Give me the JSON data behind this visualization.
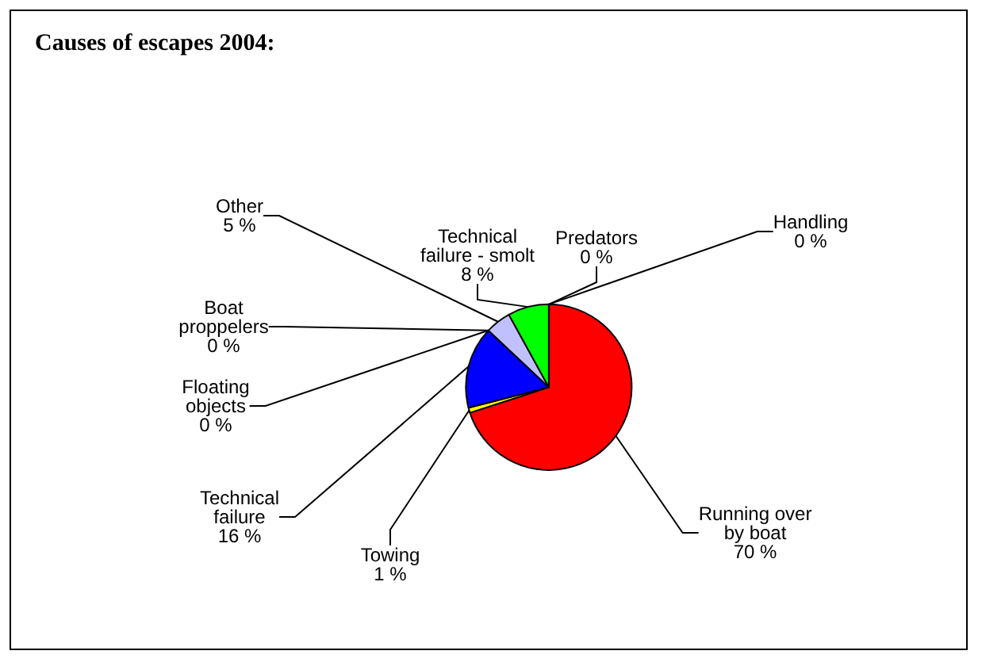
{
  "chart_data": {
    "type": "pie",
    "title": "Causes of escapes 2004:",
    "categories": [
      "Predators",
      "Handling",
      "Running over\nby boat",
      "Towing",
      "Technical\nfailure",
      "Floating\nobjects",
      "Boat\nproppelers",
      "Other",
      "Technical\nfailure - smolt"
    ],
    "values": [
      0,
      0,
      70,
      1,
      16,
      0,
      0,
      5,
      8
    ],
    "value_labels": [
      "0 %",
      "0 %",
      "70 %",
      "1 %",
      "16 %",
      "0 %",
      "0 %",
      "5 %",
      "8 %"
    ],
    "colors": [
      "#ff8000",
      "#808080",
      "#ff0000",
      "#ffff00",
      "#0000ff",
      "#000000",
      "#000000",
      "#c0c0ff",
      "#00ff00"
    ],
    "legend": false
  }
}
